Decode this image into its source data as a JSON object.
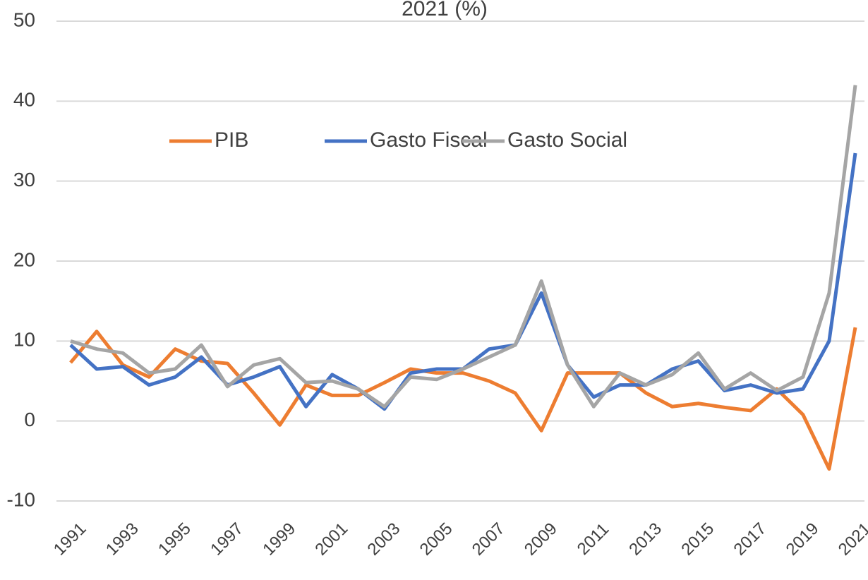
{
  "chart_data": {
    "type": "line",
    "title": "2021 (%)",
    "categories": [
      "1991",
      null,
      "1993",
      null,
      "1995",
      null,
      "1997",
      null,
      "1999",
      null,
      "2001",
      null,
      "2003",
      null,
      "2005",
      null,
      "2007",
      null,
      "2009",
      null,
      "2011",
      null,
      "2013",
      null,
      "2015",
      null,
      "2017",
      null,
      "2019",
      null,
      "2021"
    ],
    "series": [
      {
        "name": "PIB",
        "color": "#ed7d31",
        "values": [
          7.3,
          11.2,
          7,
          5.5,
          9,
          7.5,
          7.2,
          3.5,
          -0.5,
          4.5,
          3.2,
          3.2,
          4.8,
          6.5,
          6,
          6,
          5,
          3.5,
          -1.2,
          6,
          6,
          6,
          3.5,
          1.8,
          2.2,
          1.7,
          1.3,
          4,
          0.8,
          -6,
          11.7
        ]
      },
      {
        "name": "Gasto Fiscal",
        "color": "#4472c4",
        "values": [
          9.5,
          6.5,
          6.8,
          4.5,
          5.5,
          8,
          4.5,
          5.5,
          6.8,
          1.8,
          5.8,
          4,
          1.5,
          6,
          6.5,
          6.5,
          9,
          9.5,
          16,
          7,
          3,
          4.5,
          4.5,
          6.5,
          7.5,
          3.8,
          4.5,
          3.5,
          4,
          10,
          33.5
        ]
      },
      {
        "name": "Gasto Social",
        "color": "#a5a5a5",
        "values": [
          10,
          9,
          8.5,
          6,
          6.5,
          9.5,
          4.3,
          7,
          7.8,
          4.8,
          5,
          4,
          1.8,
          5.5,
          5.2,
          6.5,
          8,
          9.5,
          17.5,
          7,
          1.8,
          6,
          4.5,
          5.8,
          8.5,
          4,
          6,
          3.8,
          5.5,
          16,
          42
        ]
      }
    ],
    "ylim": [
      -10,
      50
    ],
    "yticks": [
      -10,
      0,
      10,
      20,
      30,
      40,
      50
    ],
    "grid": true,
    "legend": "top"
  }
}
